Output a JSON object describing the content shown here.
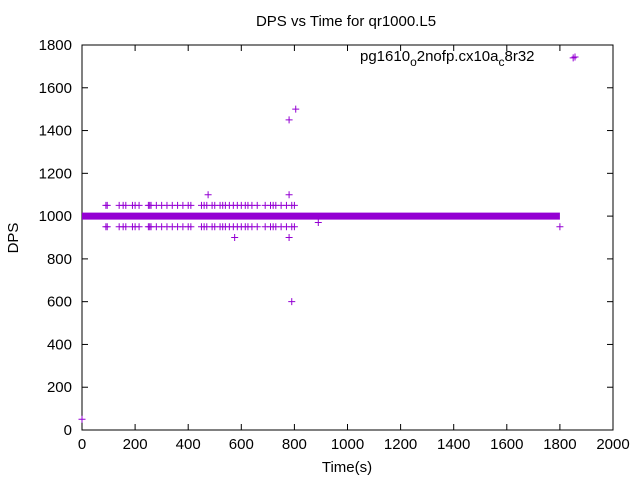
{
  "chart_data": {
    "type": "scatter",
    "title": "DPS vs Time for qr1000.L5",
    "xlabel": "Time(s)",
    "ylabel": "DPS",
    "xlim": [
      0,
      2000
    ],
    "ylim": [
      0,
      1800
    ],
    "xticks": [
      "0",
      "200",
      "400",
      "600",
      "800",
      "1000",
      "1200",
      "1400",
      "1600",
      "1800",
      "2000"
    ],
    "yticks": [
      "0",
      "200",
      "400",
      "600",
      "800",
      "1000",
      "1200",
      "1400",
      "1600",
      "1800"
    ],
    "grid": false,
    "legend_position": "top-right",
    "legend_parts": [
      "pg1610",
      "o",
      "2nofp.cx10a",
      "c",
      "8r32"
    ],
    "marker": "+",
    "color": "#9400d3",
    "series": [
      {
        "name": "pg1610_o2nofp.cx10a_c8r32",
        "line_y": 1000,
        "line_x_range": [
          0,
          1800
        ],
        "points": [
          [
            0,
            50
          ],
          [
            90,
            1050
          ],
          [
            90,
            950
          ],
          [
            95,
            1050
          ],
          [
            95,
            950
          ],
          [
            140,
            1050
          ],
          [
            140,
            950
          ],
          [
            155,
            1050
          ],
          [
            155,
            950
          ],
          [
            165,
            1050
          ],
          [
            165,
            950
          ],
          [
            190,
            1050
          ],
          [
            190,
            950
          ],
          [
            200,
            1050
          ],
          [
            200,
            950
          ],
          [
            215,
            1050
          ],
          [
            215,
            950
          ],
          [
            250,
            1050
          ],
          [
            250,
            950
          ],
          [
            255,
            1050
          ],
          [
            255,
            950
          ],
          [
            260,
            1050
          ],
          [
            260,
            950
          ],
          [
            280,
            1050
          ],
          [
            280,
            950
          ],
          [
            300,
            1050
          ],
          [
            300,
            950
          ],
          [
            320,
            1050
          ],
          [
            320,
            950
          ],
          [
            340,
            1050
          ],
          [
            340,
            950
          ],
          [
            360,
            1050
          ],
          [
            360,
            950
          ],
          [
            380,
            1050
          ],
          [
            380,
            950
          ],
          [
            400,
            1050
          ],
          [
            400,
            950
          ],
          [
            410,
            1050
          ],
          [
            410,
            950
          ],
          [
            450,
            1050
          ],
          [
            450,
            950
          ],
          [
            460,
            1050
          ],
          [
            460,
            950
          ],
          [
            470,
            1050
          ],
          [
            470,
            950
          ],
          [
            475,
            1100
          ],
          [
            490,
            1050
          ],
          [
            490,
            950
          ],
          [
            500,
            1050
          ],
          [
            500,
            950
          ],
          [
            520,
            1050
          ],
          [
            520,
            950
          ],
          [
            530,
            1050
          ],
          [
            530,
            950
          ],
          [
            540,
            1050
          ],
          [
            540,
            950
          ],
          [
            555,
            1050
          ],
          [
            555,
            950
          ],
          [
            570,
            1050
          ],
          [
            570,
            950
          ],
          [
            575,
            900
          ],
          [
            585,
            1050
          ],
          [
            585,
            950
          ],
          [
            600,
            1050
          ],
          [
            600,
            950
          ],
          [
            615,
            1050
          ],
          [
            615,
            950
          ],
          [
            625,
            1050
          ],
          [
            625,
            950
          ],
          [
            640,
            1050
          ],
          [
            640,
            950
          ],
          [
            660,
            1050
          ],
          [
            660,
            950
          ],
          [
            690,
            1050
          ],
          [
            690,
            950
          ],
          [
            710,
            1050
          ],
          [
            710,
            950
          ],
          [
            720,
            1050
          ],
          [
            720,
            950
          ],
          [
            730,
            1050
          ],
          [
            730,
            950
          ],
          [
            750,
            1050
          ],
          [
            750,
            950
          ],
          [
            770,
            1050
          ],
          [
            770,
            950
          ],
          [
            780,
            1450
          ],
          [
            780,
            1100
          ],
          [
            780,
            900
          ],
          [
            790,
            1050
          ],
          [
            790,
            950
          ],
          [
            790,
            600
          ],
          [
            800,
            1050
          ],
          [
            800,
            950
          ],
          [
            805,
            1500
          ],
          [
            890,
            970
          ],
          [
            1800,
            950
          ],
          [
            1850,
            1740
          ]
        ]
      }
    ]
  }
}
